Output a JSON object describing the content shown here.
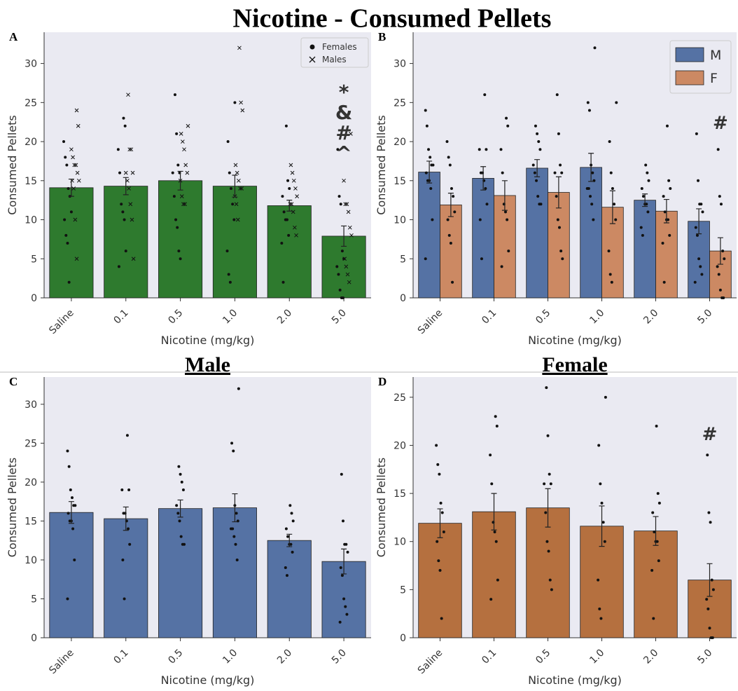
{
  "title": "Nicotine - Consumed Pellets",
  "chart_data": [
    {
      "type": "bar",
      "label": "A",
      "x_label": "Nicotine (mg/kg)",
      "y_label": "Consumed Pellets",
      "categories": [
        "Saline",
        "0.1",
        "0.5",
        "1.0",
        "2.0",
        "5.0"
      ],
      "color": "#2e7a2e",
      "values": [
        14.1,
        14.3,
        15.0,
        14.3,
        11.8,
        7.9
      ],
      "errors": [
        1.1,
        1.1,
        1.2,
        1.4,
        0.7,
        1.3
      ],
      "ylim": [
        0,
        34
      ],
      "yticks": [
        0,
        5,
        10,
        15,
        20,
        25,
        30
      ],
      "legend": "upper right",
      "annotations": [
        "*",
        "&",
        "#",
        "^"
      ],
      "annotation_color": "#000000",
      "points": [
        {
          "name": "Females",
          "marker": "o",
          "values": [
            [
              20,
              18,
              17,
              14,
              13,
              11,
              10,
              8,
              7,
              2
            ],
            [
              23,
              22,
              19,
              16,
              12,
              11,
              10,
              6,
              4
            ],
            [
              26,
              21,
              17,
              16,
              16,
              13,
              10,
              9,
              6,
              5
            ],
            [
              25,
              20,
              16,
              14,
              12,
              10,
              6,
              3,
              2
            ],
            [
              22,
              15,
              14,
              13,
              11,
              10,
              10,
              8,
              7,
              2
            ],
            [
              19,
              13,
              12,
              6,
              5,
              4,
              3,
              1,
              0,
              0
            ]
          ]
        },
        {
          "name": "Males",
          "marker": "x",
          "values": [
            [
              24,
              22,
              19,
              18,
              17,
              17,
              16,
              15,
              15,
              14,
              10,
              5
            ],
            [
              26,
              19,
              19,
              16,
              16,
              15,
              14,
              12,
              10,
              5
            ],
            [
              22,
              21,
              20,
              19,
              17,
              16,
              15,
              13,
              12,
              12
            ],
            [
              32,
              25,
              24,
              17,
              16,
              15,
              14,
              14,
              13,
              12,
              10
            ],
            [
              17,
              16,
              15,
              14,
              13,
              12,
              12,
              11,
              9,
              8
            ],
            [
              21,
              15,
              12,
              12,
              11,
              9,
              8,
              5,
              4,
              3,
              2
            ]
          ]
        }
      ]
    },
    {
      "type": "grouped-bar",
      "label": "B",
      "x_label": "Nicotine (mg/kg)",
      "y_label": "Consumed Pellets",
      "categories": [
        "Saline",
        "0.1",
        "0.5",
        "1.0",
        "2.0",
        "5.0"
      ],
      "ylim": [
        0,
        34
      ],
      "yticks": [
        0,
        5,
        10,
        15,
        20,
        25,
        30
      ],
      "legend": "upper right",
      "annotations": [
        "#"
      ],
      "annotation_color": "#cc8963",
      "series": [
        {
          "name": "M",
          "color": "#5572a4",
          "values": [
            16.1,
            15.3,
            16.6,
            16.7,
            12.5,
            9.8
          ],
          "errors": [
            1.4,
            1.5,
            1.1,
            1.8,
            0.8,
            1.6
          ],
          "points": [
            [
              24,
              22,
              19,
              18,
              17,
              17,
              16,
              15,
              15,
              14,
              10,
              5
            ],
            [
              26,
              19,
              19,
              16,
              16,
              15,
              14,
              12,
              10,
              5
            ],
            [
              22,
              21,
              20,
              19,
              17,
              16,
              15,
              13,
              12,
              12
            ],
            [
              32,
              25,
              24,
              17,
              16,
              15,
              14,
              14,
              13,
              12,
              10
            ],
            [
              17,
              16,
              15,
              14,
              13,
              12,
              12,
              11,
              9,
              8
            ],
            [
              21,
              15,
              12,
              12,
              11,
              9,
              8,
              5,
              4,
              3,
              2
            ]
          ]
        },
        {
          "name": "F",
          "color": "#cc8963",
          "values": [
            11.9,
            13.1,
            13.5,
            11.6,
            11.1,
            6.0
          ],
          "errors": [
            1.5,
            1.9,
            2.0,
            2.1,
            1.5,
            1.7
          ],
          "points": [
            [
              20,
              18,
              17,
              14,
              13,
              11,
              10,
              8,
              7,
              2
            ],
            [
              23,
              22,
              19,
              16,
              12,
              11,
              10,
              6,
              4
            ],
            [
              26,
              21,
              17,
              16,
              16,
              13,
              10,
              9,
              6,
              5
            ],
            [
              25,
              20,
              16,
              14,
              12,
              10,
              6,
              3,
              2
            ],
            [
              22,
              15,
              14,
              13,
              11,
              10,
              10,
              8,
              7,
              2
            ],
            [
              19,
              13,
              12,
              6,
              5,
              4,
              3,
              1,
              0,
              0
            ]
          ]
        }
      ]
    },
    {
      "type": "bar",
      "label": "C",
      "title": "Male",
      "x_label": "Nicotine (mg/kg)",
      "y_label": "Consumed Pellets",
      "categories": [
        "Saline",
        "0.1",
        "0.5",
        "1.0",
        "2.0",
        "5.0"
      ],
      "color": "#5572a4",
      "values": [
        16.1,
        15.3,
        16.6,
        16.7,
        12.5,
        9.8
      ],
      "errors": [
        1.4,
        1.5,
        1.1,
        1.8,
        0.8,
        1.6
      ],
      "ylim": [
        0,
        33.5
      ],
      "yticks": [
        0,
        5,
        10,
        15,
        20,
        25,
        30
      ],
      "points": [
        {
          "marker": "o",
          "values": [
            [
              24,
              22,
              19,
              18,
              17,
              17,
              16,
              15,
              15,
              14,
              10,
              5
            ],
            [
              26,
              19,
              19,
              16,
              16,
              15,
              14,
              12,
              10,
              5
            ],
            [
              22,
              21,
              20,
              19,
              17,
              16,
              15,
              13,
              12,
              12
            ],
            [
              32,
              25,
              24,
              17,
              16,
              15,
              14,
              14,
              13,
              12,
              10
            ],
            [
              17,
              16,
              15,
              14,
              13,
              12,
              12,
              11,
              9,
              8
            ],
            [
              21,
              15,
              12,
              12,
              11,
              9,
              8,
              5,
              4,
              3,
              2
            ]
          ]
        }
      ]
    },
    {
      "type": "bar",
      "label": "D",
      "title": "Female",
      "x_label": "Nicotine (mg/kg)",
      "y_label": "Consumed Pellets",
      "categories": [
        "Saline",
        "0.1",
        "0.5",
        "1.0",
        "2.0",
        "5.0"
      ],
      "color": "#b5703f",
      "values": [
        11.9,
        13.1,
        13.5,
        11.6,
        11.1,
        6.0
      ],
      "errors": [
        1.5,
        1.9,
        2.0,
        2.1,
        1.5,
        1.7
      ],
      "ylim": [
        0,
        27.1
      ],
      "yticks": [
        0,
        5,
        10,
        15,
        20,
        25
      ],
      "annotations": [
        "#"
      ],
      "annotation_color": "#cc8963",
      "points": [
        {
          "marker": "o",
          "values": [
            [
              20,
              18,
              17,
              14,
              13,
              11,
              10,
              8,
              7,
              2
            ],
            [
              23,
              22,
              19,
              16,
              12,
              11,
              10,
              6,
              4
            ],
            [
              26,
              21,
              17,
              16,
              16,
              13,
              10,
              9,
              6,
              5
            ],
            [
              25,
              20,
              16,
              14,
              12,
              10,
              6,
              3,
              2
            ],
            [
              22,
              15,
              14,
              13,
              11,
              10,
              10,
              8,
              7,
              2
            ],
            [
              19,
              13,
              12,
              6,
              5,
              4,
              3,
              1,
              0,
              0
            ]
          ]
        }
      ]
    }
  ]
}
